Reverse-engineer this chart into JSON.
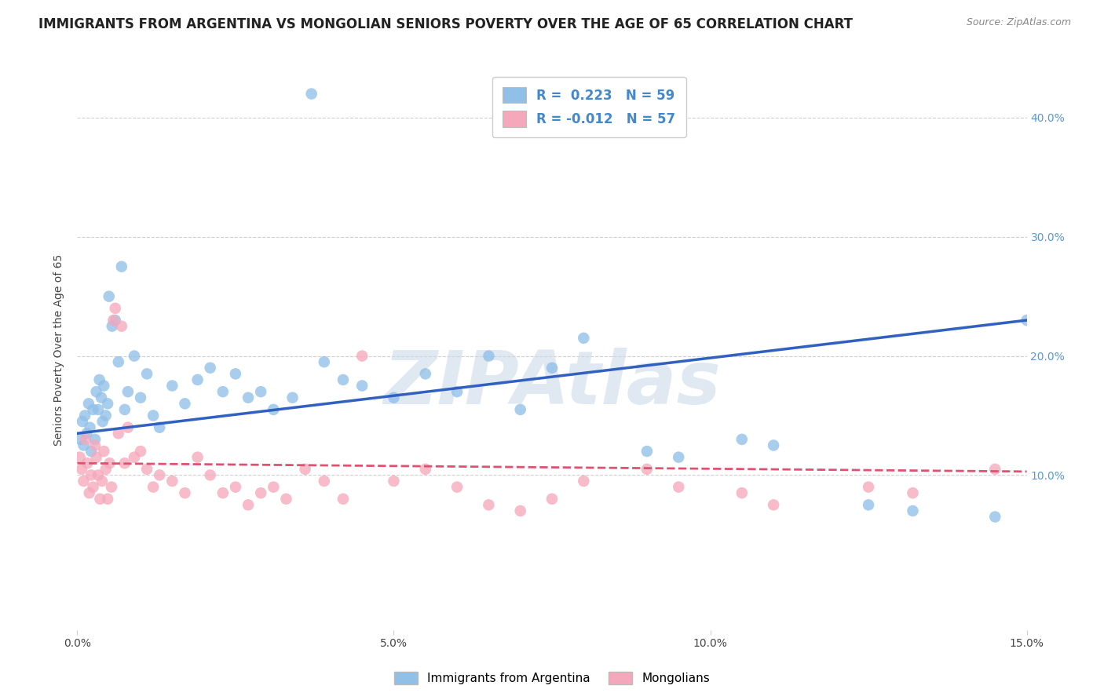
{
  "title": "IMMIGRANTS FROM ARGENTINA VS MONGOLIAN SENIORS POVERTY OVER THE AGE OF 65 CORRELATION CHART",
  "source": "Source: ZipAtlas.com",
  "ylabel": "Seniors Poverty Over the Age of 65",
  "xlim": [
    0.0,
    15.0
  ],
  "ylim": [
    -3.0,
    44.0
  ],
  "blue_R": 0.223,
  "blue_N": 59,
  "pink_R": -0.012,
  "pink_N": 57,
  "blue_color": "#90bfe8",
  "pink_color": "#f5a8bc",
  "blue_line_color": "#3060c0",
  "pink_line_color": "#e05070",
  "legend_label_blue": "Immigrants from Argentina",
  "legend_label_pink": "Mongolians",
  "watermark": "ZIPAtlas",
  "blue_x": [
    0.05,
    0.08,
    0.1,
    0.12,
    0.15,
    0.18,
    0.2,
    0.22,
    0.25,
    0.28,
    0.3,
    0.33,
    0.35,
    0.38,
    0.4,
    0.42,
    0.45,
    0.48,
    0.5,
    0.55,
    0.6,
    0.65,
    0.7,
    0.75,
    0.8,
    0.9,
    1.0,
    1.1,
    1.2,
    1.3,
    1.5,
    1.7,
    1.9,
    2.1,
    2.3,
    2.5,
    2.7,
    2.9,
    3.1,
    3.4,
    3.7,
    3.9,
    4.2,
    4.5,
    5.0,
    5.5,
    6.0,
    6.5,
    7.0,
    7.5,
    8.0,
    9.0,
    9.5,
    10.5,
    11.0,
    12.5,
    13.2,
    14.5,
    15.0
  ],
  "blue_y": [
    13.0,
    14.5,
    12.5,
    15.0,
    13.5,
    16.0,
    14.0,
    12.0,
    15.5,
    13.0,
    17.0,
    15.5,
    18.0,
    16.5,
    14.5,
    17.5,
    15.0,
    16.0,
    25.0,
    22.5,
    23.0,
    19.5,
    27.5,
    15.5,
    17.0,
    20.0,
    16.5,
    18.5,
    15.0,
    14.0,
    17.5,
    16.0,
    18.0,
    19.0,
    17.0,
    18.5,
    16.5,
    17.0,
    15.5,
    16.5,
    42.0,
    19.5,
    18.0,
    17.5,
    16.5,
    18.5,
    17.0,
    20.0,
    15.5,
    19.0,
    21.5,
    12.0,
    11.5,
    13.0,
    12.5,
    7.5,
    7.0,
    6.5,
    23.0
  ],
  "pink_x": [
    0.04,
    0.07,
    0.1,
    0.13,
    0.16,
    0.19,
    0.22,
    0.25,
    0.28,
    0.3,
    0.33,
    0.36,
    0.39,
    0.42,
    0.45,
    0.48,
    0.51,
    0.54,
    0.57,
    0.6,
    0.65,
    0.7,
    0.75,
    0.8,
    0.9,
    1.0,
    1.1,
    1.2,
    1.3,
    1.5,
    1.7,
    1.9,
    2.1,
    2.3,
    2.5,
    2.7,
    2.9,
    3.1,
    3.3,
    3.6,
    3.9,
    4.2,
    4.5,
    5.0,
    5.5,
    6.0,
    6.5,
    7.0,
    7.5,
    8.0,
    9.0,
    9.5,
    10.5,
    11.0,
    12.5,
    13.2,
    14.5
  ],
  "pink_y": [
    11.5,
    10.5,
    9.5,
    13.0,
    11.0,
    8.5,
    10.0,
    9.0,
    12.5,
    11.5,
    10.0,
    8.0,
    9.5,
    12.0,
    10.5,
    8.0,
    11.0,
    9.0,
    23.0,
    24.0,
    13.5,
    22.5,
    11.0,
    14.0,
    11.5,
    12.0,
    10.5,
    9.0,
    10.0,
    9.5,
    8.5,
    11.5,
    10.0,
    8.5,
    9.0,
    7.5,
    8.5,
    9.0,
    8.0,
    10.5,
    9.5,
    8.0,
    20.0,
    9.5,
    10.5,
    9.0,
    7.5,
    7.0,
    8.0,
    9.5,
    10.5,
    9.0,
    8.5,
    7.5,
    9.0,
    8.5,
    10.5
  ],
  "xtick_vals": [
    0.0,
    5.0,
    10.0,
    15.0
  ],
  "xtick_labels": [
    "0.0%",
    "5.0%",
    "10.0%",
    "15.0%"
  ],
  "ytick_vals": [
    10.0,
    20.0,
    30.0,
    40.0
  ],
  "ytick_labels": [
    "10.0%",
    "20.0%",
    "30.0%",
    "40.0%"
  ],
  "title_fontsize": 12,
  "source_fontsize": 9,
  "axis_label_fontsize": 10,
  "tick_fontsize": 10
}
